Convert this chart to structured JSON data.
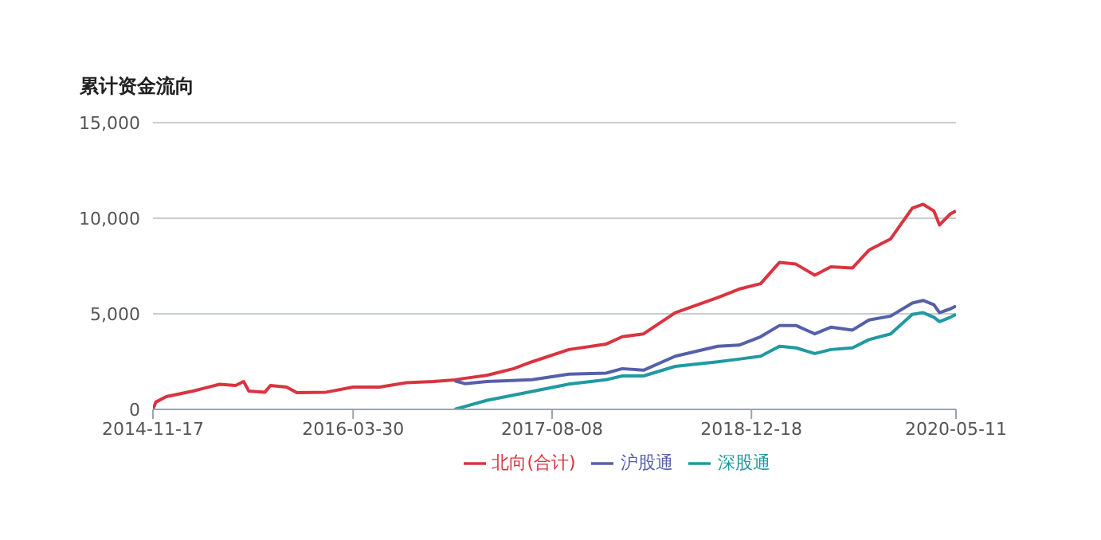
{
  "chart_data": {
    "type": "line",
    "title": "累计资金流向",
    "xlim": [
      "2014-11-17",
      "2020-05-11"
    ],
    "xticks": [
      "2014-11-17",
      "2016-03-30",
      "2017-08-08",
      "2018-12-18",
      "2020-05-11"
    ],
    "ylim": [
      0,
      15000
    ],
    "yticks": [
      {
        "value": 0,
        "label": "0"
      },
      {
        "value": 5000,
        "label": "5,000"
      },
      {
        "value": 10000,
        "label": "10,000"
      },
      {
        "value": 15000,
        "label": "15,000"
      }
    ],
    "grid": "y",
    "legend": "bottom",
    "marker": "none",
    "line_style": "solid",
    "series": [
      {
        "name": "北向(合计)",
        "color": "#d9343f",
        "x": [
          "2014-11-17",
          "2014-11-24",
          "2014-12-20",
          "2015-02-25",
          "2015-05-02",
          "2015-06-11",
          "2015-07-01",
          "2015-07-14",
          "2015-08-23",
          "2015-09-06",
          "2015-10-16",
          "2015-11-11",
          "2016-01-23",
          "2016-03-30",
          "2016-06-04",
          "2016-08-10",
          "2016-10-16",
          "2016-12-08",
          "2017-01-04",
          "2017-02-26",
          "2017-05-04",
          "2017-06-19",
          "2017-09-19",
          "2017-12-21",
          "2018-01-30",
          "2018-03-24",
          "2018-06-11",
          "2018-09-25",
          "2018-11-17",
          "2019-01-10",
          "2019-02-26",
          "2019-04-08",
          "2019-05-25",
          "2019-07-04",
          "2019-08-27",
          "2019-10-07",
          "2019-11-30",
          "2020-01-23",
          "2020-02-19",
          "2020-03-17",
          "2020-03-31",
          "2020-04-27",
          "2020-05-11"
        ],
        "values": [
          0,
          380,
          670,
          960,
          1310,
          1250,
          1460,
          960,
          900,
          1250,
          1170,
          870,
          900,
          1170,
          1170,
          1400,
          1460,
          1540,
          1630,
          1780,
          2130,
          2490,
          3130,
          3420,
          3800,
          3950,
          5060,
          5850,
          6290,
          6580,
          7690,
          7600,
          7020,
          7460,
          7400,
          8330,
          8920,
          10530,
          10730,
          10380,
          9650,
          10230,
          10380
        ]
      },
      {
        "name": "沪股通",
        "color": "#5560a8",
        "x": [
          "2016-12-08",
          "2017-01-04",
          "2017-02-26",
          "2017-06-19",
          "2017-09-19",
          "2017-12-21",
          "2018-01-30",
          "2018-03-24",
          "2018-06-11",
          "2018-09-25",
          "2018-11-17",
          "2019-01-10",
          "2019-02-26",
          "2019-04-08",
          "2019-05-25",
          "2019-07-04",
          "2019-08-27",
          "2019-10-07",
          "2019-11-30",
          "2020-01-23",
          "2020-02-19",
          "2020-03-17",
          "2020-03-31",
          "2020-04-27",
          "2020-05-11"
        ],
        "values": [
          1500,
          1340,
          1460,
          1550,
          1840,
          1900,
          2130,
          2050,
          2780,
          3300,
          3360,
          3800,
          4390,
          4390,
          3950,
          4300,
          4150,
          4680,
          4880,
          5560,
          5700,
          5470,
          5060,
          5260,
          5410
        ]
      },
      {
        "name": "深股通",
        "color": "#1f9aa0",
        "x": [
          "2016-12-08",
          "2017-02-26",
          "2017-06-19",
          "2017-09-19",
          "2017-12-21",
          "2018-01-30",
          "2018-03-24",
          "2018-06-11",
          "2018-09-25",
          "2018-11-17",
          "2019-01-10",
          "2019-02-26",
          "2019-04-08",
          "2019-05-25",
          "2019-07-04",
          "2019-08-27",
          "2019-10-07",
          "2019-11-30",
          "2020-01-23",
          "2020-02-19",
          "2020-03-17",
          "2020-03-31",
          "2020-04-27",
          "2020-05-11"
        ],
        "values": [
          0,
          470,
          940,
          1320,
          1550,
          1750,
          1750,
          2250,
          2490,
          2630,
          2780,
          3300,
          3220,
          2920,
          3130,
          3220,
          3650,
          3950,
          4970,
          5060,
          4820,
          4590,
          4820,
          4970
        ]
      }
    ]
  }
}
